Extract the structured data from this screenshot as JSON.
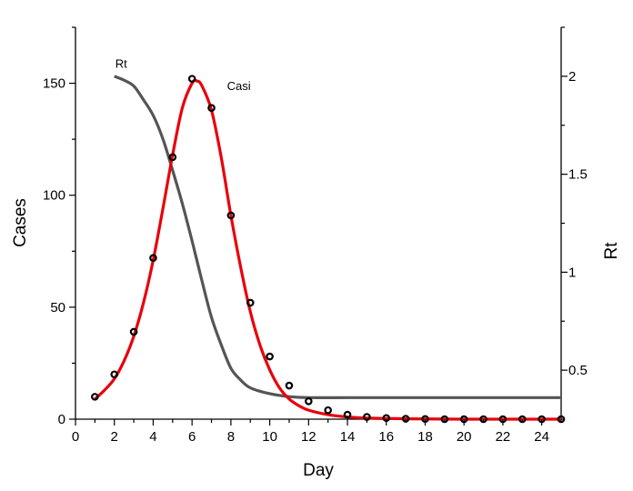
{
  "chart_data": {
    "type": "line",
    "xlabel": "Day",
    "ylabel": "Cases",
    "y2label": "Rt",
    "xlim": [
      0,
      25
    ],
    "ylim": [
      0,
      175
    ],
    "y2lim": [
      0.25,
      2.25
    ],
    "x_ticks": [
      0,
      2,
      4,
      6,
      8,
      10,
      12,
      14,
      16,
      18,
      20,
      22,
      24
    ],
    "y_ticks": [
      0,
      50,
      100,
      150
    ],
    "y2_ticks": [
      0.5,
      1,
      1.5,
      2
    ],
    "y2_tick_labels": [
      "0.5",
      "1",
      "1.5",
      "2"
    ],
    "grid": false,
    "annotations": [
      {
        "text": "Rt",
        "x": 2.0,
        "y": 157
      },
      {
        "text": "Casi",
        "x": 7.8,
        "y": 147
      }
    ],
    "series": [
      {
        "style": "points",
        "axis": "left",
        "color": "#000000",
        "x": [
          1,
          2,
          3,
          4,
          5,
          6,
          7,
          8,
          9,
          10,
          11,
          12,
          13,
          14,
          15,
          16,
          17,
          18,
          19,
          20,
          21,
          22,
          23,
          24,
          25
        ],
        "y": [
          10,
          20,
          39,
          72,
          117,
          152,
          139,
          91,
          52,
          28,
          15,
          8,
          4,
          2,
          1,
          0.5,
          0.2,
          0.1,
          0,
          0,
          0,
          0,
          0,
          0,
          0
        ]
      },
      {
        "style": "line",
        "axis": "left",
        "color": "#e8000b",
        "x": [
          1,
          1.5,
          2,
          2.5,
          3,
          3.5,
          4,
          4.5,
          5,
          5.5,
          6,
          6.25,
          6.5,
          7,
          7.5,
          8,
          8.5,
          9,
          9.5,
          10,
          10.5,
          11,
          11.5,
          12,
          13,
          14,
          15,
          16,
          18,
          20,
          22,
          25
        ],
        "y": [
          9,
          13,
          18,
          26,
          37,
          52,
          71,
          94,
          118,
          139,
          150,
          151,
          149,
          138,
          117,
          91,
          68,
          48,
          33,
          22,
          14,
          9,
          6,
          4,
          2,
          1,
          0.5,
          0.3,
          0.1,
          0,
          0,
          0
        ]
      },
      {
        "style": "line",
        "axis": "right",
        "color": "#555555",
        "x": [
          2,
          2.5,
          3,
          3.5,
          4,
          4.5,
          5,
          5.5,
          6,
          6.5,
          7,
          7.5,
          8,
          8.5,
          9,
          10,
          11,
          12,
          14,
          16,
          20,
          25
        ],
        "y": [
          2.0,
          1.98,
          1.95,
          1.88,
          1.8,
          1.68,
          1.52,
          1.35,
          1.16,
          0.96,
          0.77,
          0.63,
          0.51,
          0.45,
          0.41,
          0.38,
          0.365,
          0.36,
          0.36,
          0.36,
          0.36,
          0.36
        ]
      }
    ]
  }
}
